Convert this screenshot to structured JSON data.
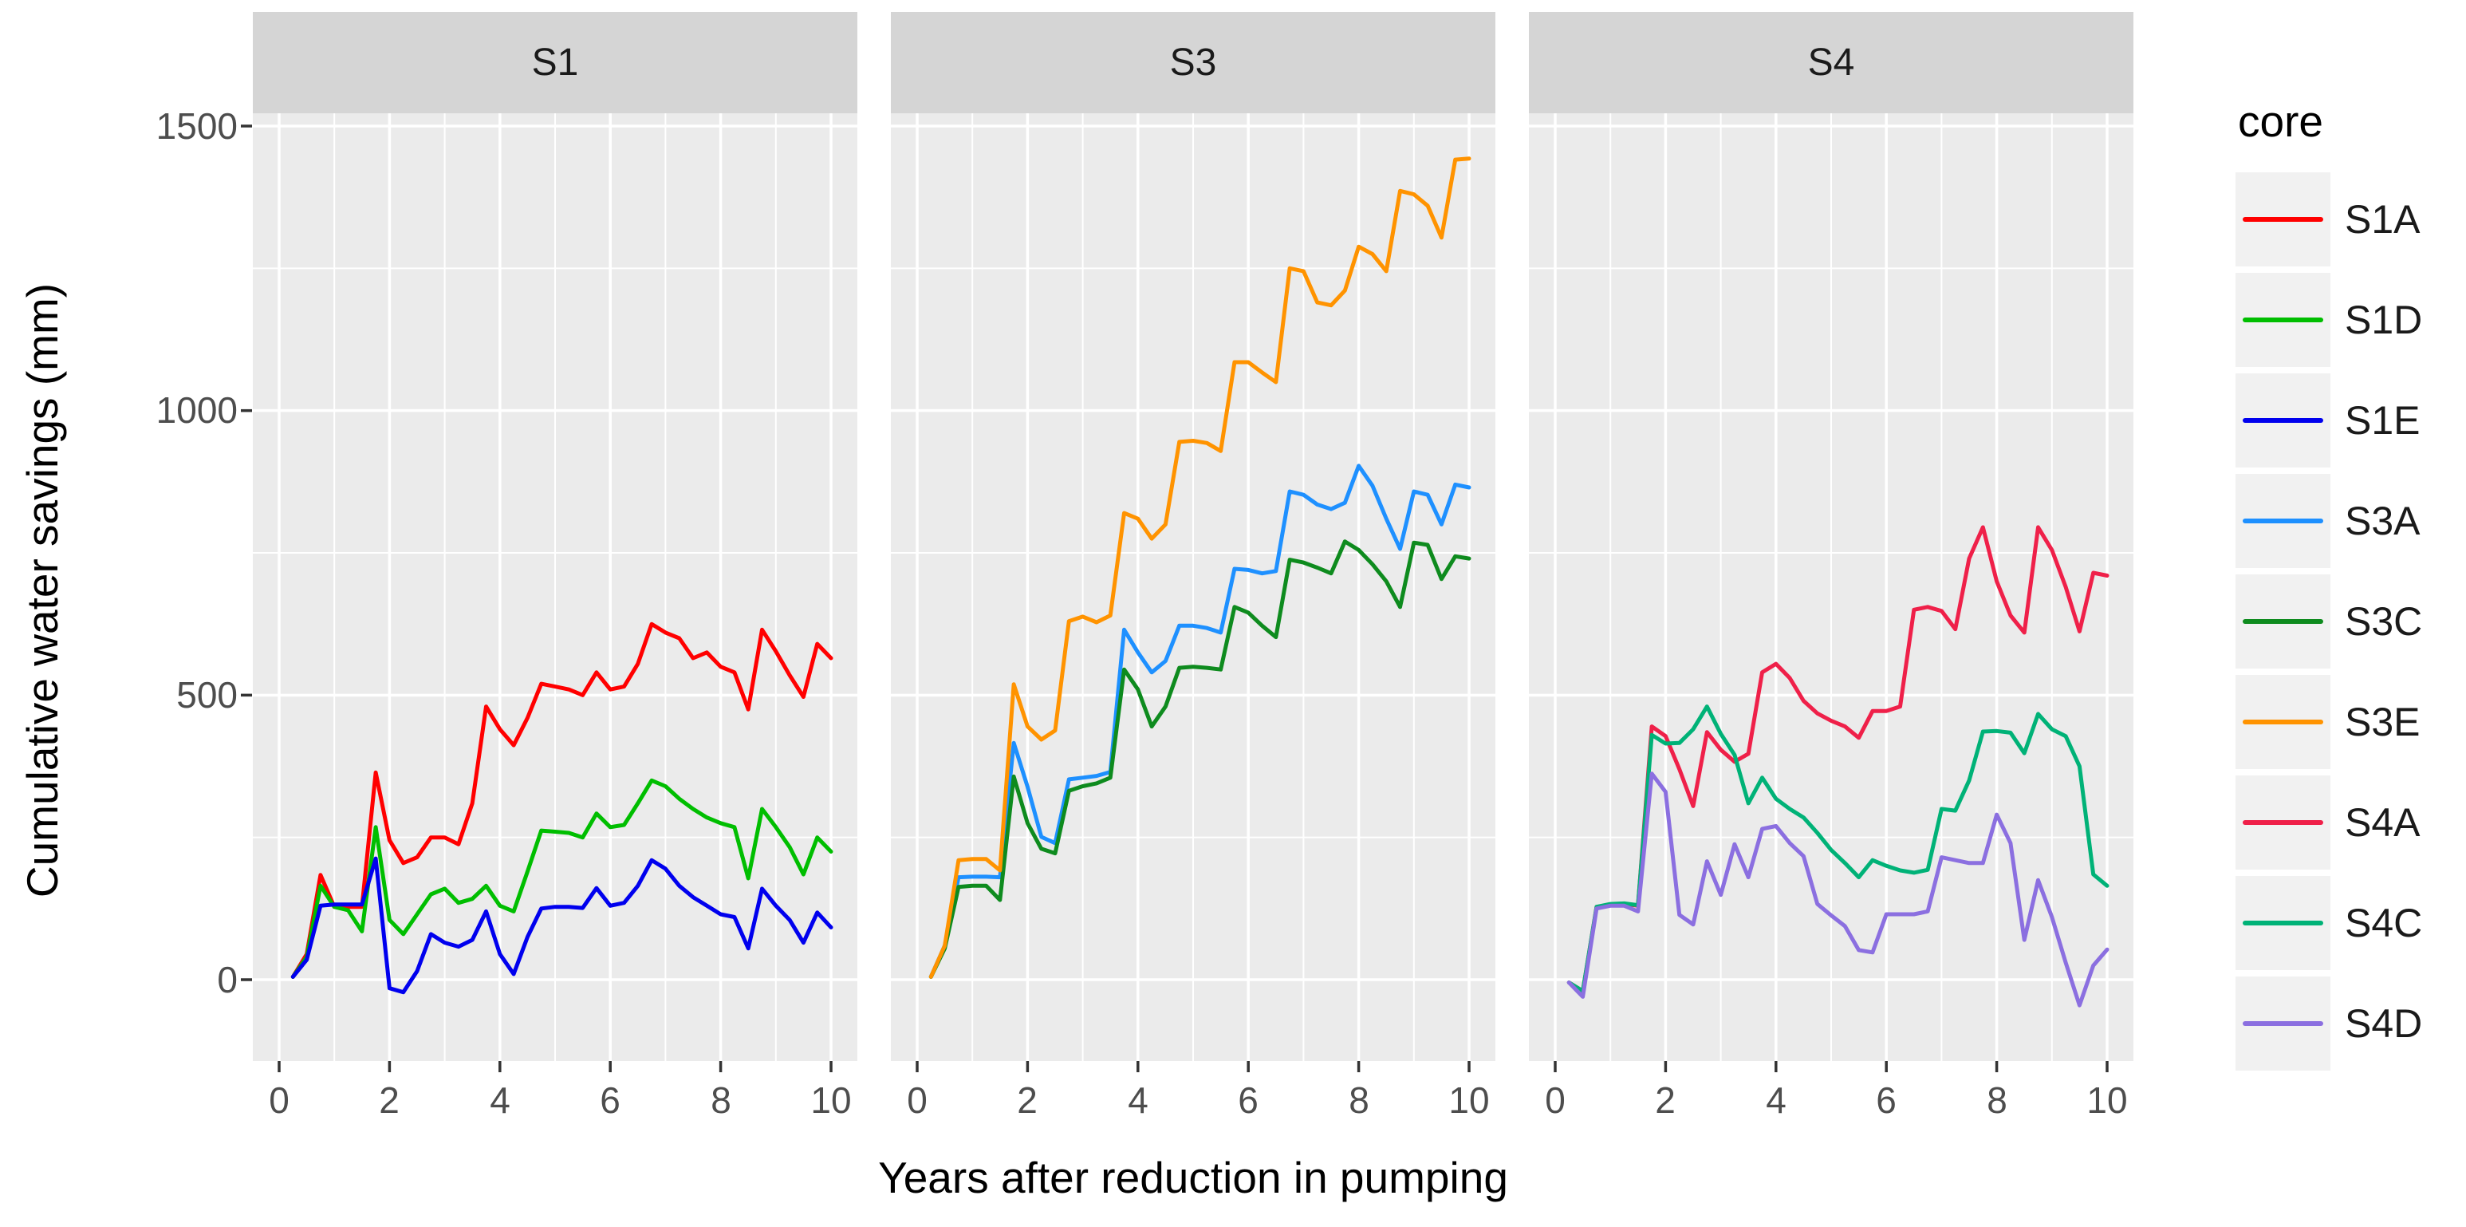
{
  "chart_data": {
    "type": "line",
    "title": "",
    "xlabel": "Years after reduction in pumping",
    "ylabel": "Cumulative water savings (mm)",
    "facets": [
      "S1",
      "S3",
      "S4"
    ],
    "legend_title": "core",
    "legend_position": "right",
    "grid": "on",
    "panel_bg": "#EBEBEB",
    "strip_bg": "#D5D5D5",
    "gridline_color": "#FFFFFF",
    "xlim": [
      -0.48,
      10.48
    ],
    "ylim": [
      -175,
      1525
    ],
    "x_major_ticks": [
      0,
      2,
      4,
      6,
      8,
      10
    ],
    "x_minor_ticks": [
      1,
      3,
      5,
      7,
      9
    ],
    "y_major_ticks": [
      0,
      500,
      1000,
      1500
    ],
    "y_minor_ticks": [
      250,
      750,
      1250
    ],
    "x": [
      0.25,
      0.5,
      0.75,
      1,
      1.25,
      1.5,
      1.75,
      2,
      2.25,
      2.5,
      2.75,
      3,
      3.25,
      3.5,
      3.75,
      4,
      4.25,
      4.5,
      4.75,
      5,
      5.25,
      5.5,
      5.75,
      6,
      6.25,
      6.5,
      6.75,
      7,
      7.25,
      7.5,
      7.75,
      8,
      8.25,
      8.5,
      8.75,
      9,
      9.25,
      9.5,
      9.75,
      10
    ],
    "series": [
      {
        "name": "S1A",
        "facet": "S1",
        "color": "#FF0000",
        "values": [
          5,
          45,
          184,
          128,
          128,
          128,
          364,
          245,
          205,
          215,
          250,
          250,
          238,
          310,
          480,
          440,
          412,
          460,
          520,
          515,
          510,
          500,
          540,
          510,
          515,
          555,
          625,
          610,
          600,
          565,
          575,
          550,
          540,
          475,
          615,
          577,
          535,
          497,
          590,
          565
        ]
      },
      {
        "name": "S1D",
        "facet": "S1",
        "color": "#00BE00",
        "values": [
          5,
          40,
          165,
          128,
          122,
          85,
          268,
          105,
          80,
          115,
          150,
          160,
          135,
          142,
          165,
          130,
          120,
          190,
          262,
          260,
          258,
          250,
          292,
          268,
          272,
          310,
          350,
          340,
          318,
          300,
          285,
          275,
          268,
          178,
          300,
          268,
          233,
          185,
          250,
          225
        ]
      },
      {
        "name": "S1E",
        "facet": "S1",
        "color": "#0000EE",
        "values": [
          5,
          35,
          130,
          132,
          132,
          132,
          213,
          -15,
          -22,
          15,
          80,
          65,
          58,
          70,
          120,
          45,
          10,
          75,
          125,
          128,
          128,
          126,
          161,
          130,
          135,
          165,
          210,
          195,
          165,
          145,
          130,
          115,
          110,
          55,
          160,
          130,
          105,
          65,
          118,
          92
        ]
      },
      {
        "name": "S3A",
        "facet": "S3",
        "color": "#1E90FF",
        "values": [
          5,
          60,
          180,
          181,
          181,
          180,
          416,
          339,
          251,
          240,
          352,
          355,
          358,
          365,
          615,
          575,
          540,
          560,
          622,
          622,
          618,
          610,
          722,
          720,
          714,
          718,
          858,
          852,
          835,
          827,
          838,
          903,
          868,
          810,
          757,
          858,
          852,
          800,
          870,
          865
        ]
      },
      {
        "name": "S3C",
        "facet": "S3",
        "color": "#0E8B1E",
        "values": [
          5,
          55,
          163,
          165,
          165,
          140,
          357,
          275,
          230,
          222,
          332,
          340,
          345,
          355,
          545,
          510,
          445,
          480,
          548,
          550,
          548,
          545,
          655,
          645,
          622,
          602,
          738,
          733,
          724,
          714,
          770,
          755,
          730,
          700,
          655,
          768,
          764,
          704,
          744,
          740
        ]
      },
      {
        "name": "S3E",
        "facet": "S3",
        "color": "#FF9300",
        "values": [
          5,
          60,
          210,
          212,
          212,
          192,
          519,
          445,
          422,
          438,
          630,
          638,
          628,
          640,
          820,
          810,
          775,
          800,
          945,
          947,
          943,
          929,
          1085,
          1085,
          1067,
          1050,
          1250,
          1245,
          1190,
          1185,
          1211,
          1288,
          1275,
          1245,
          1386,
          1380,
          1360,
          1304,
          1441,
          1443
        ]
      },
      {
        "name": "S4A",
        "facet": "S4",
        "color": "#EF2049",
        "values": [
          -5,
          -20,
          128,
          132,
          133,
          130,
          445,
          428,
          370,
          305,
          435,
          404,
          383,
          397,
          540,
          555,
          530,
          490,
          468,
          455,
          445,
          425,
          472,
          472,
          480,
          650,
          655,
          648,
          616,
          740,
          795,
          700,
          640,
          610,
          795,
          755,
          690,
          612,
          715,
          710
        ]
      },
      {
        "name": "S4C",
        "facet": "S4",
        "color": "#00B277",
        "values": [
          -5,
          -20,
          128,
          133,
          134,
          131,
          430,
          415,
          416,
          440,
          480,
          432,
          395,
          310,
          355,
          318,
          300,
          285,
          258,
          228,
          205,
          180,
          210,
          200,
          192,
          188,
          193,
          300,
          297,
          350,
          436,
          437,
          434,
          398,
          467,
          440,
          428,
          375,
          185,
          165
        ]
      },
      {
        "name": "S4D",
        "facet": "S4",
        "color": "#8B6FE0",
        "values": [
          -5,
          -30,
          125,
          130,
          130,
          120,
          362,
          330,
          114,
          97,
          208,
          149,
          238,
          180,
          265,
          270,
          240,
          217,
          133,
          113,
          94,
          52,
          48,
          115,
          115,
          115,
          120,
          215,
          210,
          205,
          205,
          290,
          240,
          70,
          175,
          110,
          30,
          -45,
          25,
          53
        ]
      }
    ]
  },
  "panels": [
    {
      "title": "S1"
    },
    {
      "title": "S3"
    },
    {
      "title": "S4"
    }
  ],
  "axes": {
    "xlabel": "Years after reduction in pumping",
    "ylabel": "Cumulative water savings (mm)",
    "x_ticks": [
      "0",
      "2",
      "4",
      "6",
      "8",
      "10"
    ],
    "y_ticks": [
      "1500",
      "1000",
      "500",
      "0"
    ]
  },
  "legend": {
    "title": "core",
    "items": [
      {
        "label": "S1A",
        "color": "#FF0000"
      },
      {
        "label": "S1D",
        "color": "#00BE00"
      },
      {
        "label": "S1E",
        "color": "#0000EE"
      },
      {
        "label": "S3A",
        "color": "#1E90FF"
      },
      {
        "label": "S3C",
        "color": "#0E8B1E"
      },
      {
        "label": "S3E",
        "color": "#FF9300"
      },
      {
        "label": "S4A",
        "color": "#EF2049"
      },
      {
        "label": "S4C",
        "color": "#00B277"
      },
      {
        "label": "S4D",
        "color": "#8B6FE0"
      }
    ]
  }
}
